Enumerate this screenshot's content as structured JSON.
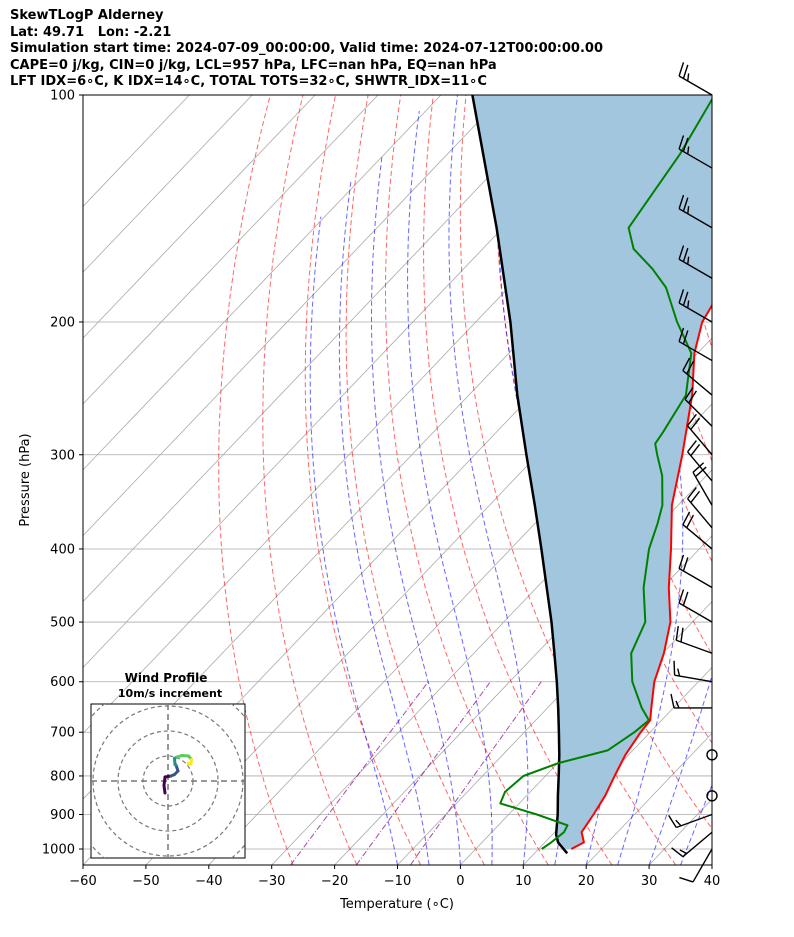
{
  "header": {
    "title": "SkewTLogP Alderney",
    "location": "Lat: 49.71   Lon: -2.21",
    "times": "Simulation start time: 2024-07-09_00:00:00, Valid time: 2024-07-12T00:00:00.00",
    "indices1": "CAPE=0 j/kg, CIN=0 j/kg, LCL=957 hPa, LFC=nan hPa, EQ=nan hPa",
    "indices2": "LFT IDX=6∘C, K IDX=14∘C, TOTAL TOTS=32∘C, SHWTR_IDX=11∘C"
  },
  "chart_data": {
    "type": "line",
    "xlabel": "Temperature (∘C)",
    "ylabel": "Pressure (hPa)",
    "xlim": [
      -60,
      40
    ],
    "ylim": [
      1050,
      100
    ],
    "y_scale": "log",
    "skew": "skew-T",
    "grid": true,
    "x_ticks": [
      -60,
      -50,
      -40,
      -30,
      -20,
      -10,
      0,
      10,
      20,
      30,
      40
    ],
    "y_ticks": [
      100,
      200,
      300,
      400,
      500,
      600,
      700,
      800,
      900,
      1000
    ],
    "colors": {
      "temperature": "#ff0000",
      "dewpoint": "#008000",
      "parcel": "#000000",
      "shade": "#a3c6df",
      "dry_adiabats": "#ff0000",
      "moist_adiabats": "#0000ff",
      "mixing_ratio": "#800080",
      "isotherms": "#aaaaaa"
    },
    "series": [
      {
        "role": "temperature",
        "points": [
          [
            1000,
            15.2
          ],
          [
            980,
            16.2
          ],
          [
            950,
            14.3
          ],
          [
            900,
            13.5
          ],
          [
            850,
            12.5
          ],
          [
            800,
            11.0
          ],
          [
            750,
            9.5
          ],
          [
            700,
            8.5
          ],
          [
            675,
            8.2
          ],
          [
            650,
            6.5
          ],
          [
            600,
            3.0
          ],
          [
            550,
            0.2
          ],
          [
            500,
            -3.5
          ],
          [
            450,
            -9.0
          ],
          [
            400,
            -14.5
          ],
          [
            350,
            -21.0
          ],
          [
            300,
            -27.0
          ],
          [
            250,
            -34.5
          ],
          [
            220,
            -40.5
          ],
          [
            200,
            -44.0
          ],
          [
            180,
            -46.0
          ],
          [
            160,
            -46.5
          ],
          [
            150,
            -46.3
          ],
          [
            140,
            -46.5
          ],
          [
            130,
            -47.0
          ],
          [
            120,
            -50.5
          ],
          [
            110,
            -54.0
          ],
          [
            100,
            -57.5
          ]
        ]
      },
      {
        "role": "dewpoint",
        "points": [
          [
            1000,
            10.5
          ],
          [
            980,
            11.0
          ],
          [
            950,
            11.5
          ],
          [
            930,
            11.0
          ],
          [
            900,
            4.5
          ],
          [
            870,
            -3.0
          ],
          [
            840,
            -4.0
          ],
          [
            800,
            -3.5
          ],
          [
            770,
            0.0
          ],
          [
            740,
            6.0
          ],
          [
            700,
            7.5
          ],
          [
            675,
            8.0
          ],
          [
            650,
            5.0
          ],
          [
            600,
            -0.5
          ],
          [
            550,
            -5.0
          ],
          [
            500,
            -7.5
          ],
          [
            450,
            -13.0
          ],
          [
            400,
            -18.0
          ],
          [
            370,
            -20.5
          ],
          [
            350,
            -22.5
          ],
          [
            320,
            -27.0
          ],
          [
            300,
            -31.0
          ],
          [
            290,
            -33.0
          ],
          [
            280,
            -33.5
          ],
          [
            250,
            -35.5
          ],
          [
            220,
            -41.0
          ],
          [
            200,
            -48.0
          ],
          [
            180,
            -55.0
          ],
          [
            170,
            -60.0
          ],
          [
            160,
            -66.0
          ],
          [
            150,
            -70.0
          ],
          [
            120,
            -73.0
          ],
          [
            100,
            -76.5
          ]
        ]
      },
      {
        "role": "parcel",
        "points": [
          [
            1013,
            15.2
          ],
          [
            980,
            12.1
          ],
          [
            957,
            10.6
          ],
          [
            900,
            7.8
          ],
          [
            850,
            5.0
          ],
          [
            800,
            2.1
          ],
          [
            750,
            -1.0
          ],
          [
            700,
            -4.5
          ],
          [
            650,
            -8.3
          ],
          [
            600,
            -12.5
          ],
          [
            550,
            -17.2
          ],
          [
            500,
            -22.4
          ],
          [
            450,
            -28.4
          ],
          [
            400,
            -35.1
          ],
          [
            350,
            -42.8
          ],
          [
            300,
            -51.8
          ],
          [
            250,
            -62.3
          ],
          [
            200,
            -74.5
          ],
          [
            150,
            -91.0
          ],
          [
            100,
            -115.0
          ]
        ]
      }
    ],
    "wind_barbs": [
      {
        "p": 100,
        "speed": 25,
        "dir": 300
      },
      {
        "p": 125,
        "speed": 25,
        "dir": 300
      },
      {
        "p": 150,
        "speed": 25,
        "dir": 300
      },
      {
        "p": 175,
        "speed": 25,
        "dir": 300
      },
      {
        "p": 200,
        "speed": 25,
        "dir": 300
      },
      {
        "p": 225,
        "speed": 20,
        "dir": 300
      },
      {
        "p": 250,
        "speed": 20,
        "dir": 310
      },
      {
        "p": 275,
        "speed": 20,
        "dir": 315
      },
      {
        "p": 300,
        "speed": 20,
        "dir": 320
      },
      {
        "p": 325,
        "speed": 20,
        "dir": 320
      },
      {
        "p": 350,
        "speed": 20,
        "dir": 330
      },
      {
        "p": 375,
        "speed": 20,
        "dir": 320
      },
      {
        "p": 400,
        "speed": 20,
        "dir": 310
      },
      {
        "p": 450,
        "speed": 20,
        "dir": 300
      },
      {
        "p": 500,
        "speed": 20,
        "dir": 300
      },
      {
        "p": 550,
        "speed": 20,
        "dir": 290
      },
      {
        "p": 600,
        "speed": 15,
        "dir": 280
      },
      {
        "p": 650,
        "speed": 15,
        "dir": 270
      },
      {
        "p": 750,
        "speed": 0,
        "dir": 0
      },
      {
        "p": 850,
        "speed": 0,
        "dir": 0
      },
      {
        "p": 900,
        "speed": 15,
        "dir": 250
      },
      {
        "p": 950,
        "speed": 15,
        "dir": 230
      },
      {
        "p": 1000,
        "speed": 10,
        "dir": 210
      }
    ],
    "inset": {
      "title": "Wind Profile",
      "subtitle": "10m/s increment",
      "rings": 4,
      "hodograph": [
        [
          -0.6,
          -2.4
        ],
        [
          -0.8,
          -0.9
        ],
        [
          -0.6,
          0.8
        ],
        [
          0.6,
          1.0
        ],
        [
          1.3,
          1.3
        ],
        [
          2.0,
          2.0
        ],
        [
          1.6,
          3.2
        ],
        [
          1.4,
          3.3
        ],
        [
          1.3,
          4.5
        ],
        [
          1.8,
          4.8
        ],
        [
          2.8,
          5.1
        ],
        [
          4.1,
          5.0
        ],
        [
          4.7,
          4.3
        ],
        [
          4.6,
          3.4
        ],
        [
          4.0,
          3.5
        ]
      ]
    }
  }
}
